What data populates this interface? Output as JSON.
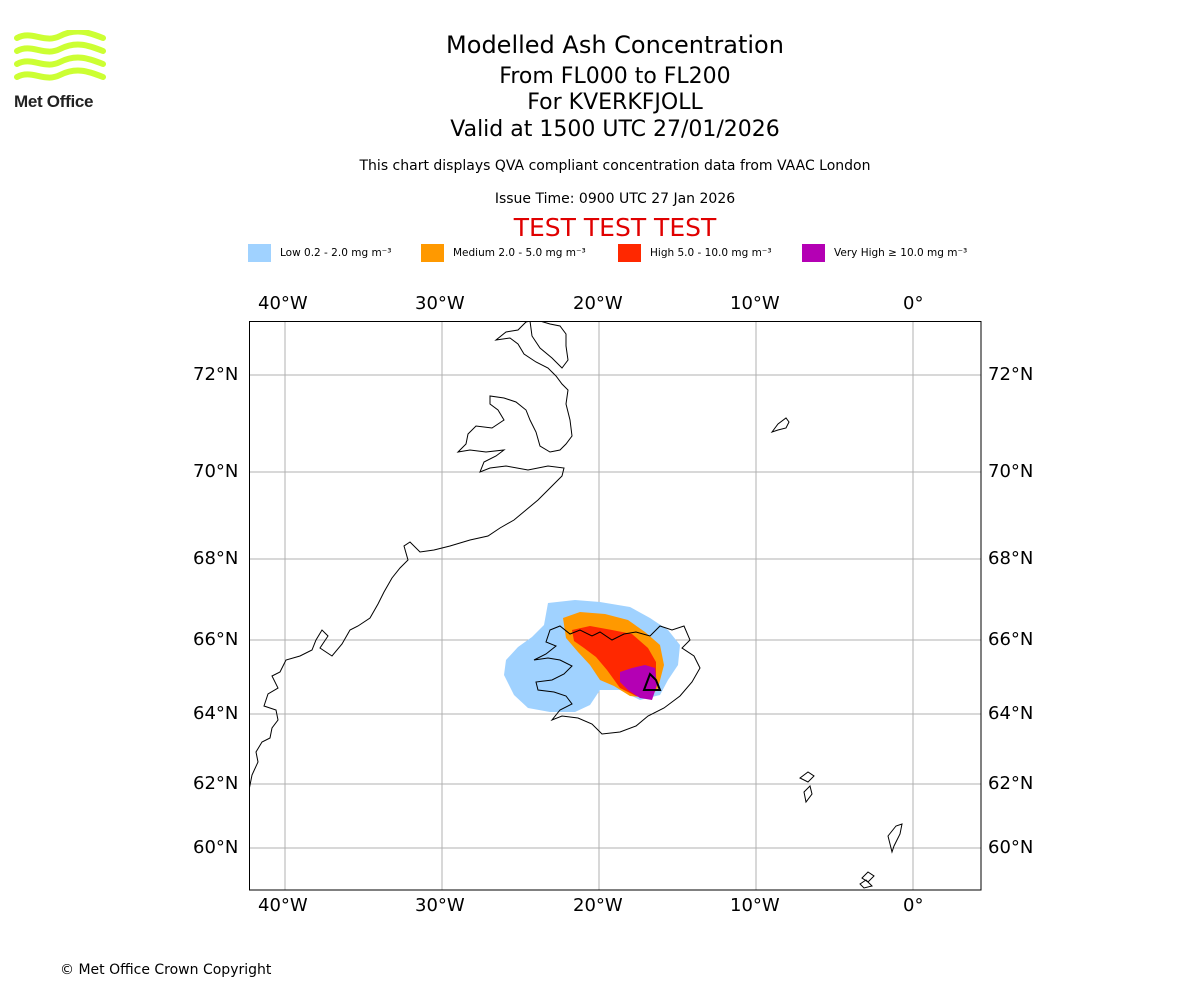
{
  "logo": {
    "text": "Met Office",
    "color": "#ccff33"
  },
  "header": {
    "title": "Modelled Ash Concentration",
    "levels": "From FL000 to FL200",
    "volcano": "For KVERKFJOLL",
    "valid": "Valid at 1500 UTC 27/01/2026",
    "description": "This chart displays QVA compliant concentration data from VAAC London",
    "issue_time": "Issue Time: 0900 UTC 27 Jan 2026",
    "test_banner": "TEST TEST TEST"
  },
  "legend": [
    {
      "label": "Low 0.2 - 2.0 mg m⁻³",
      "color": "#a0d2ff"
    },
    {
      "label": "Medium 2.0 - 5.0 mg m⁻³",
      "color": "#ff9900"
    },
    {
      "label": "High 5.0 - 10.0 mg m⁻³",
      "color": "#ff2800"
    },
    {
      "label": "Very High ≥ 10.0 mg m⁻³",
      "color": "#b400b4"
    }
  ],
  "map": {
    "lon_ticks": [
      "40°W",
      "30°W",
      "20°W",
      "10°W",
      "0°"
    ],
    "lat_ticks": [
      "72°N",
      "70°N",
      "68°N",
      "66°N",
      "64°N",
      "62°N",
      "60°N"
    ]
  },
  "footer": {
    "copyright": "© Met Office Crown Copyright"
  }
}
